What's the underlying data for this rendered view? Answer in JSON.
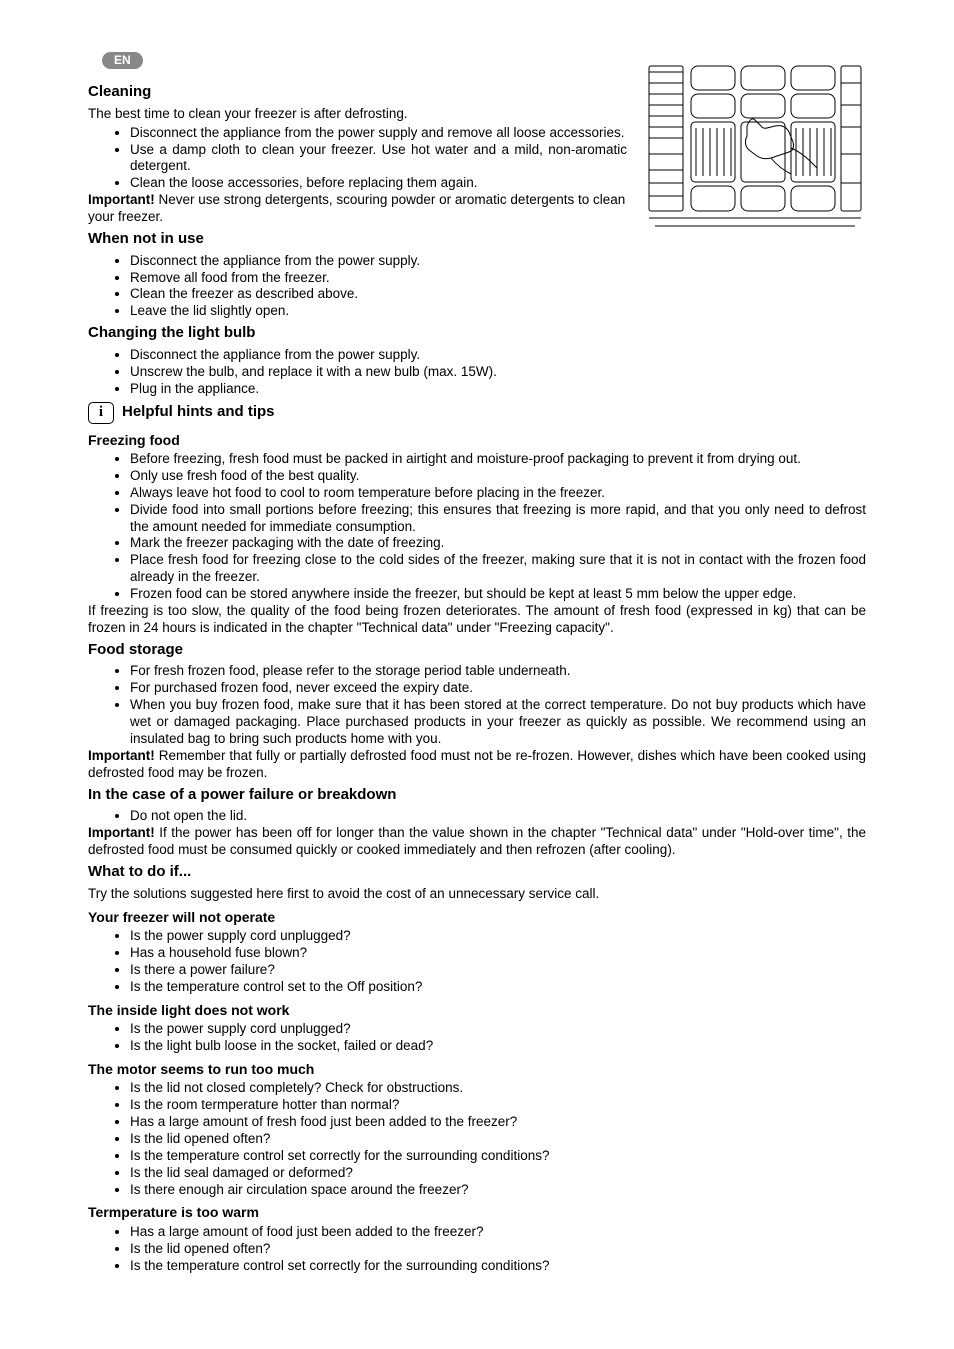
{
  "lang_badge": "EN",
  "sections": {
    "cleaning": {
      "title": "Cleaning",
      "intro": "The best time to clean your freezer is after defrosting.",
      "items": [
        "Disconnect the appliance from the power supply and remove all loose accessories.",
        "Use a damp cloth to clean your freezer. Use hot water and a mild, non-aromatic detergent.",
        "Clean the loose accessories, before replacing them again."
      ],
      "important_label": "Important!",
      "important_text": " Never use strong detergents, scouring powder or aromatic detergents to clean your freezer."
    },
    "not_in_use": {
      "title": "When not in use",
      "items": [
        "Disconnect the appliance from the power supply.",
        "Remove all food from the freezer.",
        "Clean the freezer as described above.",
        "Leave the lid slightly open."
      ]
    },
    "light_bulb": {
      "title": "Changing the light bulb",
      "items": [
        "Disconnect the appliance from the power supply.",
        "Unscrew the bulb, and replace it with a new bulb (max. 15W).",
        "Plug in the appliance."
      ]
    },
    "hints": {
      "title": "Helpful hints and tips"
    },
    "freezing": {
      "title": "Freezing food",
      "items": [
        "Before freezing, fresh food must be packed in airtight and moisture-proof packaging to prevent it from drying out.",
        "Only use fresh food of the best quality.",
        "Always leave hot food to cool to room temperature before placing in the freezer.",
        "Divide food into small portions before freezing; this ensures that freezing is more rapid, and that you only need to defrost the amount needed for immediate consumption.",
        "Mark the freezer packaging with the date of freezing.",
        "Place fresh food for freezing close to the cold sides of the freezer, making sure that it is not in contact with the frozen food already in the freezer.",
        "Frozen food can be stored anywhere inside the freezer, but should be kept at least 5 mm below the upper edge."
      ],
      "outro": "If freezing is too slow, the quality of the food being frozen deteriorates. The amount of fresh food (expressed in kg) that can be frozen in 24 hours is indicated in the chapter \"Technical data\"  under \"Freezing capacity\"."
    },
    "storage": {
      "title": "Food storage",
      "items": [
        "For fresh frozen food, please refer to the storage period table underneath.",
        "For purchased frozen food, never exceed the expiry date.",
        "When you buy frozen food, make sure that it has been stored at the correct temperature. Do not buy products which have wet or damaged packaging. Place purchased products in your freezer as quickly as possible. We recommend using an insulated bag to bring such products home with you."
      ],
      "important_label": "Important!",
      "important_text": " Remember that fully or partially defrosted food must not be re-frozen. However, dishes which have been cooked using defrosted food may be frozen."
    },
    "power_failure": {
      "title": "In the case of a power failure or breakdown",
      "items": [
        "Do not open the lid."
      ],
      "important_label": "Important!",
      "important_text": " If the power has been off for longer than the value shown in the chapter \"Technical data\" under \"Hold-over time\", the defrosted food must be consumed quickly or cooked immediately and then refrozen (after cooling)."
    },
    "what_to_do": {
      "title": "What to do if...",
      "intro": "Try the solutions suggested here first to avoid the cost of an unnecessary service call.",
      "groups": [
        {
          "heading": "Your freezer will not operate",
          "items": [
            "Is the power supply cord unplugged?",
            "Has a household fuse blown?",
            "Is there a power failure?",
            "Is the temperature control set to the Off position?"
          ]
        },
        {
          "heading": "The inside light does not work",
          "items": [
            "Is the power supply cord unplugged?",
            "Is the light bulb loose in the socket, failed or dead?"
          ]
        },
        {
          "heading": "The motor seems to run too much",
          "items": [
            "Is the lid not closed completely? Check for obstructions.",
            "Is the room termperature hotter than normal?",
            "Has a large amount of fresh food just been added to the freezer?",
            "Is the lid opened often?",
            "Is the temperature control set correctly for the surrounding conditions?",
            "Is the lid seal damaged or deformed?",
            "Is there enough air circulation space around the freezer?"
          ]
        },
        {
          "heading": "Termperature is too warm",
          "items": [
            "Has a large amount of food just been added to the freezer?",
            "Is the lid opened often?",
            "Is the temperature control set correctly for the surrounding conditions?"
          ]
        }
      ]
    }
  },
  "diagram": {
    "description": "Line drawing of a hand holding a cloth wiping freezer baskets",
    "stroke": "#000000",
    "bg": "#ffffff"
  }
}
